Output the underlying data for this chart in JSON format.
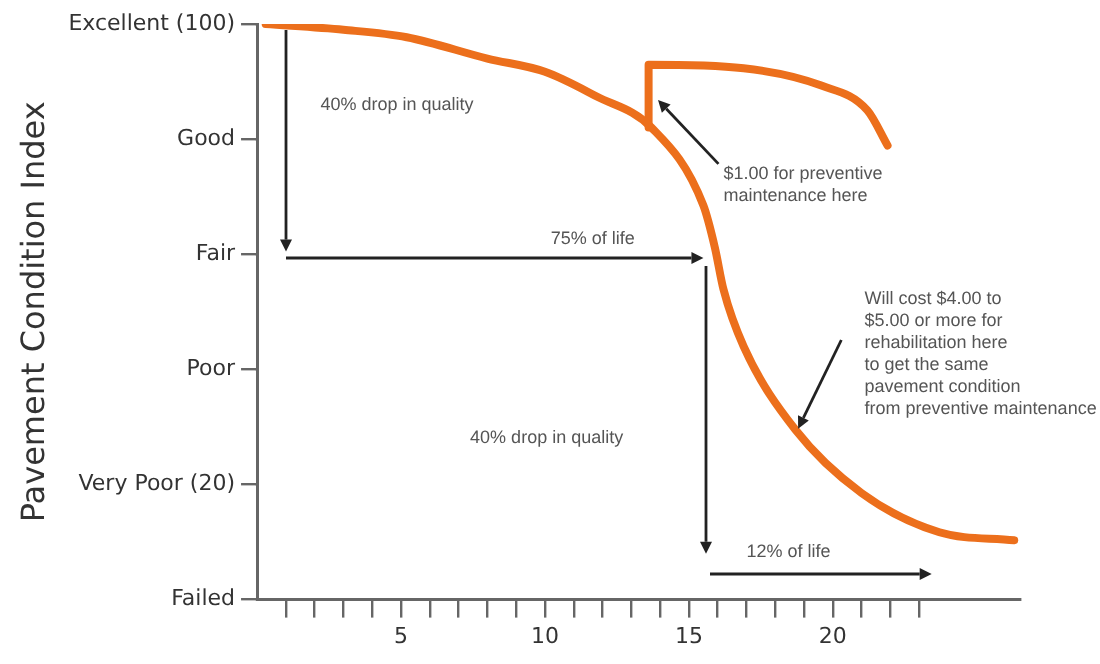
{
  "chart_data": {
    "type": "line",
    "ylabel": "Pavement Condition Index",
    "xlim": [
      0,
      26.5
    ],
    "ylim": [
      0,
      100
    ],
    "xticks": [
      {
        "value": 1,
        "label": null
      },
      {
        "value": 2,
        "label": null
      },
      {
        "value": 3,
        "label": null
      },
      {
        "value": 4,
        "label": null
      },
      5,
      {
        "value": 6,
        "label": null
      },
      {
        "value": 7,
        "label": null
      },
      {
        "value": 8,
        "label": null
      },
      {
        "value": 9,
        "label": null
      },
      10,
      {
        "value": 11,
        "label": null
      },
      {
        "value": 12,
        "label": null
      },
      {
        "value": 13,
        "label": null
      },
      {
        "value": 14,
        "label": null
      },
      15,
      {
        "value": 16,
        "label": null
      },
      {
        "value": 17,
        "label": null
      },
      {
        "value": 18,
        "label": null
      },
      {
        "value": 19,
        "label": null
      },
      20,
      {
        "value": 21,
        "label": null
      },
      {
        "value": 22,
        "label": null
      },
      {
        "value": 23,
        "label": null
      }
    ],
    "yticks": [
      {
        "value": 100,
        "label": "Excellent (100)"
      },
      {
        "value": 80,
        "label": "Good"
      },
      {
        "value": 60,
        "label": "Fair"
      },
      {
        "value": 40,
        "label": "Poor"
      },
      {
        "value": 20,
        "label": "Very Poor (20)"
      },
      {
        "value": 0,
        "label": "Failed"
      }
    ],
    "series": [
      {
        "color": "#ec6f1c",
        "x": [
          0.3,
          3,
          5.2,
          8,
          10,
          11.8,
          13.7,
          15.5,
          15.9,
          16.2,
          16.9,
          18.7,
          21,
          23.7,
          26.3
        ],
        "values": [
          100,
          99,
          97.7,
          94,
          91.7,
          87.4,
          82,
          68.5,
          61.2,
          53.9,
          44,
          29.5,
          18.5,
          11.7,
          10.3
        ]
      },
      {
        "color": "#ec6f1c",
        "x": [
          13.6,
          13.6,
          16.9,
          19.6,
          21.2,
          21.9
        ],
        "values": [
          82,
          92.9,
          92.3,
          89.3,
          85,
          78.9
        ]
      }
    ],
    "annotations": [
      "40% drop in quality",
      "75% of life",
      "$1.00 for preventive\nmaintenance here",
      "Will cost $4.00 to\n$5.00 or more for\nrehabilitation here\nto get the same\npavement condition\nfrom preventive maintenance",
      "40% drop in quality",
      "12% of life"
    ],
    "grid": false,
    "legend": false,
    "marker": "none",
    "line_style": "solid"
  }
}
